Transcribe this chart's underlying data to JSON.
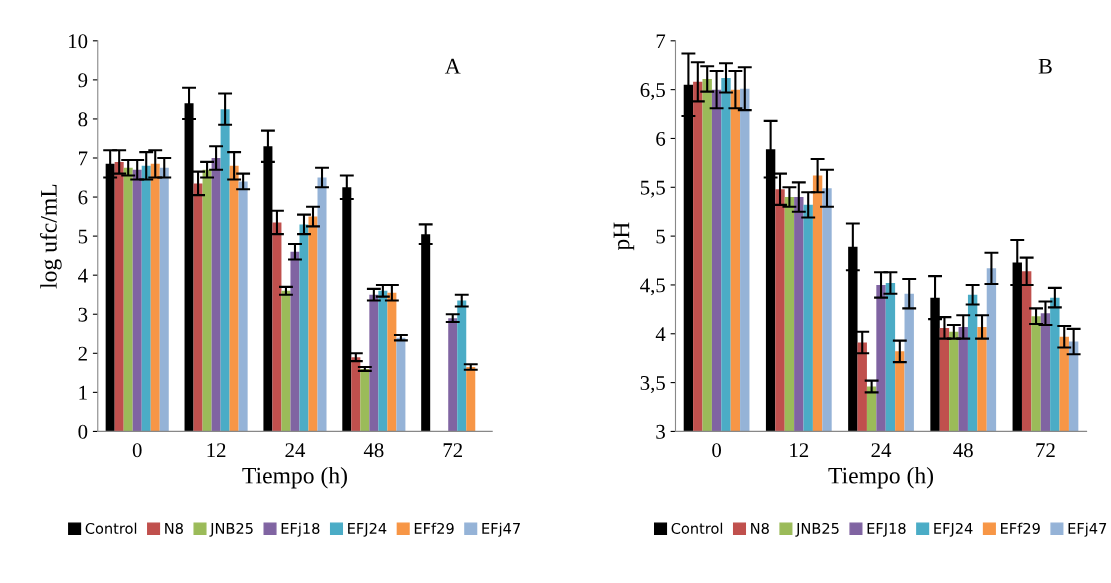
{
  "chart_data": [
    {
      "type": "bar",
      "xlabel": "Tiempo (h)",
      "ylabel": "log ufc/mL",
      "categories": [
        "0",
        "12",
        "24",
        "48",
        "72"
      ],
      "ylim": [
        0,
        10
      ],
      "yticks": [
        0,
        1,
        2,
        3,
        4,
        5,
        6,
        7,
        8,
        9,
        10
      ],
      "grid": false,
      "legend": "bottom",
      "annotations": [
        "A"
      ],
      "series": [
        {
          "name": "Control",
          "color": "#000000",
          "values": [
            6.85,
            8.4,
            7.3,
            6.25,
            5.05
          ],
          "errors": [
            0.35,
            0.4,
            0.4,
            0.3,
            0.25
          ]
        },
        {
          "name": "N8",
          "color": "#c0504d",
          "values": [
            6.9,
            6.35,
            5.35,
            1.9,
            null
          ],
          "errors": [
            0.3,
            0.3,
            0.3,
            0.1,
            null
          ]
        },
        {
          "name": "JNB25",
          "color": "#9bbb59",
          "values": [
            6.75,
            6.7,
            3.6,
            1.6,
            null
          ],
          "errors": [
            0.2,
            0.2,
            0.1,
            0.05,
            null
          ]
        },
        {
          "name": "EFj18",
          "color": "#8064a2",
          "values": [
            6.7,
            7.0,
            4.6,
            3.5,
            2.9
          ],
          "errors": [
            0.25,
            0.3,
            0.2,
            0.15,
            0.1
          ]
        },
        {
          "name": "EFJ24",
          "color": "#4bacc6",
          "values": [
            6.8,
            8.25,
            5.3,
            3.6,
            3.35
          ],
          "errors": [
            0.35,
            0.4,
            0.25,
            0.15,
            0.15
          ]
        },
        {
          "name": "EFf29",
          "color": "#f79646",
          "values": [
            6.85,
            6.8,
            5.5,
            3.55,
            1.65
          ],
          "errors": [
            0.35,
            0.35,
            0.25,
            0.2,
            0.07
          ]
        },
        {
          "name": "EFj47",
          "color": "#95b3d7",
          "values": [
            6.75,
            6.4,
            6.5,
            2.4,
            null
          ],
          "errors": [
            0.25,
            0.2,
            0.25,
            0.07,
            null
          ]
        }
      ]
    },
    {
      "type": "bar",
      "xlabel": "Tiempo (h)",
      "ylabel": "pH",
      "categories": [
        "0",
        "12",
        "24",
        "48",
        "72"
      ],
      "ylim": [
        3,
        7
      ],
      "yticks": [
        3,
        {
          "value": 3.5,
          "label": "3,5"
        },
        4,
        {
          "value": 4.5,
          "label": "4,5"
        },
        5,
        {
          "value": 5.5,
          "label": "5,5"
        },
        6,
        {
          "value": 6.5,
          "label": "6,5"
        },
        7
      ],
      "grid": false,
      "legend": "bottom",
      "annotations": [
        "B"
      ],
      "series": [
        {
          "name": "Control",
          "color": "#000000",
          "values": [
            6.55,
            5.89,
            4.89,
            4.37,
            4.73
          ],
          "errors": [
            0.32,
            0.29,
            0.24,
            0.22,
            0.23
          ]
        },
        {
          "name": "N8",
          "color": "#c0504d",
          "values": [
            6.58,
            5.48,
            3.91,
            4.06,
            4.64
          ],
          "errors": [
            0.2,
            0.16,
            0.11,
            0.11,
            0.14
          ]
        },
        {
          "name": "JNB25",
          "color": "#9bbb59",
          "values": [
            6.61,
            5.4,
            3.46,
            4.02,
            4.18
          ],
          "errors": [
            0.13,
            0.1,
            0.06,
            0.07,
            0.08
          ]
        },
        {
          "name": "EFJ18",
          "color": "#8064a2",
          "values": [
            6.5,
            5.4,
            4.5,
            4.07,
            4.21
          ],
          "errors": [
            0.19,
            0.15,
            0.13,
            0.12,
            0.12
          ]
        },
        {
          "name": "EFJ24",
          "color": "#4bacc6",
          "values": [
            6.62,
            5.32,
            4.52,
            4.4,
            4.37
          ],
          "errors": [
            0.15,
            0.13,
            0.11,
            0.1,
            0.1
          ]
        },
        {
          "name": "EFf29",
          "color": "#f79646",
          "values": [
            6.5,
            5.62,
            3.82,
            4.07,
            3.97
          ],
          "errors": [
            0.19,
            0.17,
            0.11,
            0.12,
            0.11
          ]
        },
        {
          "name": "EFj47",
          "color": "#95b3d7",
          "values": [
            6.51,
            5.49,
            4.41,
            4.67,
            3.92
          ],
          "errors": [
            0.22,
            0.19,
            0.15,
            0.16,
            0.13
          ]
        }
      ]
    }
  ]
}
